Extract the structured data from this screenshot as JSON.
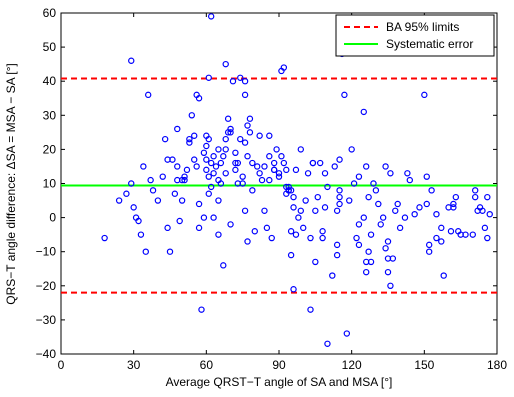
{
  "chart_data": {
    "type": "scatter",
    "title": "",
    "xlabel": "Average QRST−T angle of SA and MSA [°]",
    "ylabel": "QRS−T angle difference: ΔSA = MSA − SA [°]",
    "xlim": [
      0,
      180
    ],
    "ylim": [
      -40,
      60
    ],
    "xticks": [
      0,
      30,
      60,
      90,
      120,
      150,
      180
    ],
    "xtick_labels": [
      "0",
      "30",
      "60",
      "90",
      "120",
      "150",
      "180"
    ],
    "yticks": [
      -40,
      -30,
      -20,
      -10,
      0,
      10,
      20,
      30,
      40,
      50,
      60
    ],
    "ytick_labels": [
      "−40",
      "−30",
      "−20",
      "−10",
      "0",
      "10",
      "20",
      "30",
      "40",
      "50",
      "60"
    ],
    "grid": false,
    "legend_position": "top-right",
    "legend": [
      {
        "label": "BA 95% limits",
        "color": "#ff0000",
        "style": "dashed"
      },
      {
        "label": "Systematic error",
        "color": "#00ff00",
        "style": "solid"
      }
    ],
    "reference_lines": {
      "upper_limit": 40.8,
      "lower_limit": -22.0,
      "systematic_error": 9.4
    },
    "marker_color": "#0000ff",
    "points": [
      [
        18,
        -6
      ],
      [
        24,
        5
      ],
      [
        27,
        7
      ],
      [
        29,
        10
      ],
      [
        29,
        46
      ],
      [
        30,
        3
      ],
      [
        31,
        0
      ],
      [
        32,
        -1
      ],
      [
        33,
        -5
      ],
      [
        34,
        15
      ],
      [
        35,
        -10
      ],
      [
        36,
        36
      ],
      [
        37,
        11
      ],
      [
        38,
        8
      ],
      [
        40,
        5
      ],
      [
        42,
        12
      ],
      [
        43,
        23
      ],
      [
        44,
        17
      ],
      [
        44,
        -3
      ],
      [
        45,
        -10
      ],
      [
        46,
        17
      ],
      [
        47,
        7
      ],
      [
        48,
        15
      ],
      [
        48,
        26
      ],
      [
        48,
        11
      ],
      [
        49,
        -1
      ],
      [
        50,
        5
      ],
      [
        50,
        11
      ],
      [
        51,
        11
      ],
      [
        51,
        12
      ],
      [
        52,
        14
      ],
      [
        53,
        22
      ],
      [
        53,
        23
      ],
      [
        54,
        30
      ],
      [
        55,
        24
      ],
      [
        55,
        17
      ],
      [
        56,
        15
      ],
      [
        56,
        36
      ],
      [
        57,
        35
      ],
      [
        57,
        4
      ],
      [
        57,
        -3
      ],
      [
        58,
        -27
      ],
      [
        59,
        0
      ],
      [
        59,
        19
      ],
      [
        60,
        17
      ],
      [
        60,
        14
      ],
      [
        60,
        21
      ],
      [
        60,
        24
      ],
      [
        61,
        41
      ],
      [
        61,
        23
      ],
      [
        61,
        12
      ],
      [
        61,
        7
      ],
      [
        62,
        59
      ],
      [
        62,
        16
      ],
      [
        62,
        9
      ],
      [
        63,
        18
      ],
      [
        63,
        13
      ],
      [
        63,
        0
      ],
      [
        64,
        15
      ],
      [
        65,
        5
      ],
      [
        65,
        11
      ],
      [
        65,
        20
      ],
      [
        65,
        -5
      ],
      [
        66,
        16
      ],
      [
        66,
        10
      ],
      [
        67,
        -14
      ],
      [
        67,
        18
      ],
      [
        68,
        13
      ],
      [
        68,
        45
      ],
      [
        68,
        20
      ],
      [
        68,
        23
      ],
      [
        69,
        25
      ],
      [
        69,
        29
      ],
      [
        70,
        25
      ],
      [
        70,
        -2
      ],
      [
        70,
        26
      ],
      [
        71,
        40
      ],
      [
        72,
        16
      ],
      [
        72,
        14
      ],
      [
        72,
        19
      ],
      [
        73,
        16
      ],
      [
        73,
        10
      ],
      [
        74,
        41
      ],
      [
        74,
        23
      ],
      [
        75,
        10
      ],
      [
        75,
        12
      ],
      [
        76,
        36
      ],
      [
        76,
        40
      ],
      [
        76,
        22
      ],
      [
        76,
        2
      ],
      [
        77,
        -7
      ],
      [
        77,
        18
      ],
      [
        77,
        27
      ],
      [
        78,
        29
      ],
      [
        78,
        25
      ],
      [
        79,
        8
      ],
      [
        79,
        16
      ],
      [
        80,
        -4
      ],
      [
        81,
        15
      ],
      [
        82,
        13
      ],
      [
        82,
        24
      ],
      [
        83,
        11
      ],
      [
        84,
        2
      ],
      [
        84,
        15
      ],
      [
        85,
        -3
      ],
      [
        86,
        24
      ],
      [
        86,
        18
      ],
      [
        86,
        11
      ],
      [
        87,
        -6
      ],
      [
        88,
        14
      ],
      [
        88,
        14
      ],
      [
        88,
        16
      ],
      [
        89,
        20
      ],
      [
        90,
        13
      ],
      [
        90,
        12
      ],
      [
        91,
        18
      ],
      [
        91,
        43
      ],
      [
        92,
        44
      ],
      [
        92,
        16
      ],
      [
        93,
        9
      ],
      [
        93,
        7
      ],
      [
        93,
        14
      ],
      [
        94,
        8
      ],
      [
        94,
        8
      ],
      [
        94,
        9
      ],
      [
        95,
        8
      ],
      [
        95,
        -4
      ],
      [
        95,
        -11
      ],
      [
        96,
        6
      ],
      [
        96,
        3
      ],
      [
        96,
        -21
      ],
      [
        97,
        14
      ],
      [
        97,
        -5
      ],
      [
        98,
        0
      ],
      [
        99,
        20
      ],
      [
        99,
        2
      ],
      [
        100,
        -3
      ],
      [
        101,
        5
      ],
      [
        102,
        13
      ],
      [
        103,
        -27
      ],
      [
        103,
        -6
      ],
      [
        104,
        16
      ],
      [
        104,
        16
      ],
      [
        105,
        -13
      ],
      [
        105,
        2
      ],
      [
        106,
        6
      ],
      [
        107,
        16
      ],
      [
        108,
        -6
      ],
      [
        108,
        -4
      ],
      [
        109,
        3
      ],
      [
        109,
        13
      ],
      [
        110,
        -37
      ],
      [
        110,
        9
      ],
      [
        112,
        -17
      ],
      [
        113,
        15
      ],
      [
        114,
        -11
      ],
      [
        114,
        2
      ],
      [
        114,
        -8
      ],
      [
        115,
        17
      ],
      [
        115,
        8
      ],
      [
        115,
        6
      ],
      [
        115,
        4
      ],
      [
        116,
        48
      ],
      [
        117,
        36
      ],
      [
        118,
        -34
      ],
      [
        119,
        5
      ],
      [
        120,
        20
      ],
      [
        121,
        10
      ],
      [
        122,
        -6
      ],
      [
        123,
        -2
      ],
      [
        123,
        12
      ],
      [
        123,
        -8
      ],
      [
        125,
        0
      ],
      [
        125,
        31
      ],
      [
        126,
        -13
      ],
      [
        126,
        -16
      ],
      [
        126,
        15
      ],
      [
        127,
        6
      ],
      [
        127,
        -10
      ],
      [
        128,
        -5
      ],
      [
        128,
        -13
      ],
      [
        129,
        10
      ],
      [
        130,
        8
      ],
      [
        131,
        4
      ],
      [
        132,
        -2
      ],
      [
        133,
        0
      ],
      [
        134,
        15
      ],
      [
        134,
        -9
      ],
      [
        135,
        -12
      ],
      [
        135,
        -16
      ],
      [
        135,
        -7
      ],
      [
        136,
        -20
      ],
      [
        136,
        13
      ],
      [
        137,
        -12
      ],
      [
        138,
        2
      ],
      [
        139,
        4
      ],
      [
        140,
        -3
      ],
      [
        142,
        0
      ],
      [
        143,
        13
      ],
      [
        144,
        11
      ],
      [
        146,
        1
      ],
      [
        148,
        3
      ],
      [
        150,
        36
      ],
      [
        151,
        4
      ],
      [
        151,
        12
      ],
      [
        152,
        -10
      ],
      [
        152,
        -8
      ],
      [
        153,
        8
      ],
      [
        155,
        1
      ],
      [
        155,
        -6
      ],
      [
        157,
        -7
      ],
      [
        157,
        -3
      ],
      [
        158,
        -17
      ],
      [
        160,
        3
      ],
      [
        161,
        -4
      ],
      [
        162,
        4
      ],
      [
        162,
        3
      ],
      [
        163,
        6
      ],
      [
        164,
        -4
      ],
      [
        165,
        -5
      ],
      [
        167,
        -5
      ],
      [
        170,
        -5
      ],
      [
        171,
        6
      ],
      [
        171,
        8
      ],
      [
        172,
        2
      ],
      [
        173,
        3
      ],
      [
        174,
        2
      ],
      [
        175,
        -3
      ],
      [
        176,
        6
      ],
      [
        176,
        -6
      ],
      [
        177,
        1
      ]
    ]
  }
}
